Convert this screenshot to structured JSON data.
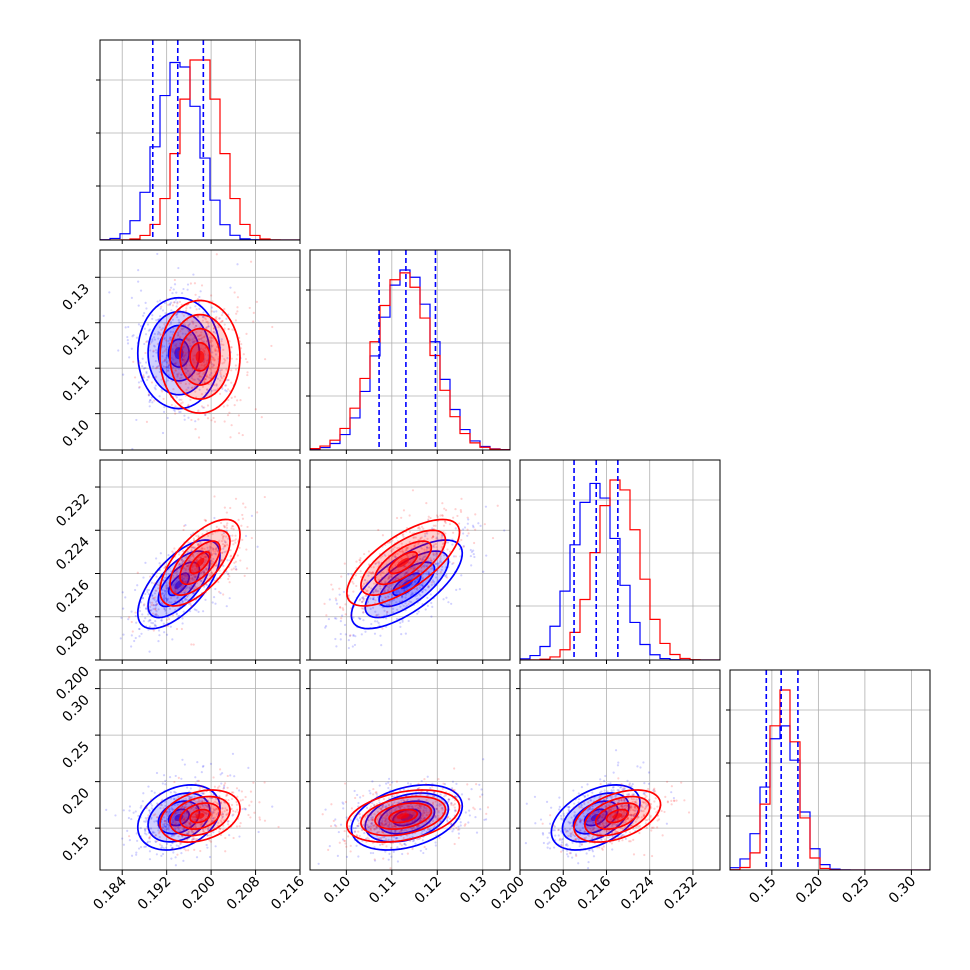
{
  "colors": {
    "series_a": "#0000ff",
    "series_b": "#ff0000",
    "grid": "#b0b0b0",
    "frame": "#000000"
  },
  "chart_data": {
    "type": "corner",
    "grid": true,
    "n_params": 4,
    "params": [
      {
        "range": [
          0.18,
          0.216
        ],
        "ticks": [
          0.184,
          0.192,
          0.2,
          0.208,
          0.216
        ],
        "tick_labels": [
          "0.184",
          "0.192",
          "0.200",
          "0.208",
          "0.216"
        ],
        "quantiles_dashed": [
          0.1895,
          0.194,
          0.1986
        ]
      },
      {
        "range": [
          0.092,
          0.136
        ],
        "ticks": [
          0.1,
          0.11,
          0.12,
          0.13
        ],
        "tick_labels": [
          "0.10",
          "0.11",
          "0.12",
          "0.13"
        ],
        "quantiles_dashed": [
          0.1072,
          0.1131,
          0.1196
        ]
      },
      {
        "range": [
          0.2,
          0.237
        ],
        "ticks": [
          0.2,
          0.208,
          0.216,
          0.224,
          0.232
        ],
        "tick_labels": [
          "0.200",
          "0.208",
          "0.216",
          "0.224",
          "0.232"
        ],
        "quantiles_dashed": [
          0.21,
          0.2141,
          0.2181
        ]
      },
      {
        "range": [
          0.105,
          0.32
        ],
        "ticks": [
          0.15,
          0.2,
          0.25,
          0.3
        ],
        "tick_labels": [
          "0.15",
          "0.20",
          "0.25",
          "0.30"
        ],
        "quantiles_dashed": [
          0.144,
          0.16,
          0.178
        ]
      }
    ],
    "series": [
      {
        "name": "",
        "color": "#0000ff",
        "mean": [
          0.1942,
          0.1133,
          0.214,
          0.1615
        ],
        "sd": [
          0.0037,
          0.0061,
          0.0041,
          0.0175
        ],
        "corr": [
          [
            1.0,
            0.0,
            0.65,
            0.3
          ],
          [
            0.0,
            1.0,
            0.7,
            0.35
          ],
          [
            0.65,
            0.7,
            1.0,
            0.45
          ],
          [
            0.3,
            0.35,
            0.45,
            1.0
          ]
        ]
      },
      {
        "name": "",
        "color": "#ff0000",
        "mean": [
          0.198,
          0.1125,
          0.218,
          0.163
        ],
        "sd": [
          0.0036,
          0.0062,
          0.004,
          0.014
        ],
        "corr": [
          [
            1.0,
            0.0,
            0.65,
            0.3
          ],
          [
            0.0,
            1.0,
            0.7,
            0.35
          ],
          [
            0.65,
            0.7,
            1.0,
            0.45
          ],
          [
            0.3,
            0.35,
            0.45,
            1.0
          ]
        ]
      }
    ]
  }
}
